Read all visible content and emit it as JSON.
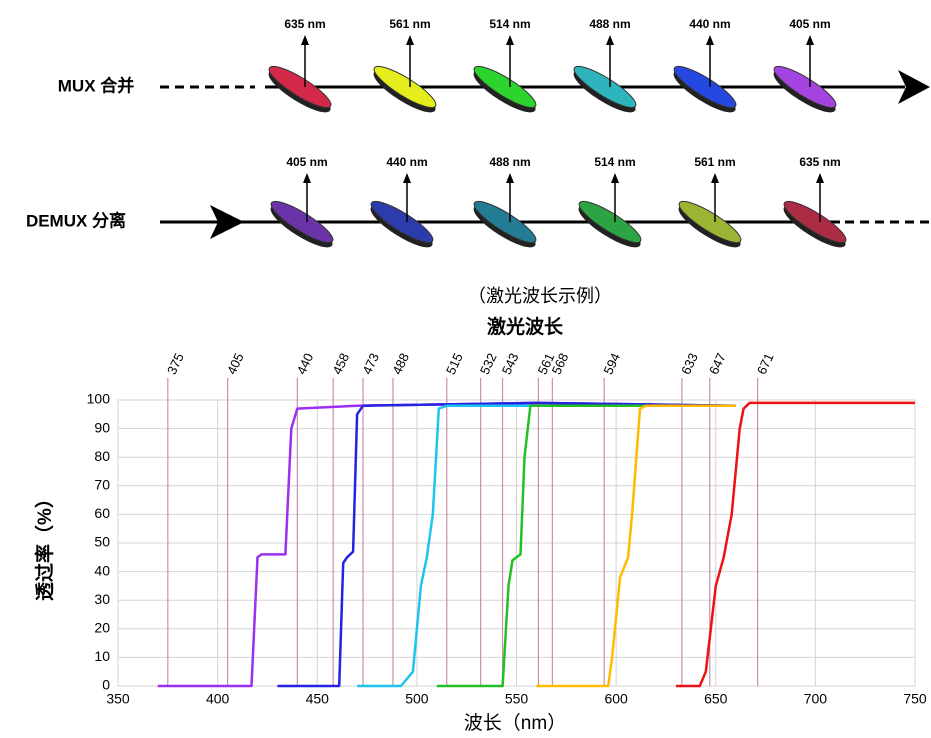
{
  "mux": {
    "label": "MUX 合并",
    "filters": [
      {
        "label": "635 nm",
        "color": "#d42848"
      },
      {
        "label": "561 nm",
        "color": "#e4ee1c"
      },
      {
        "label": "514 nm",
        "color": "#2ed42e"
      },
      {
        "label": "488 nm",
        "color": "#2eb4bc"
      },
      {
        "label": "440 nm",
        "color": "#2448e0"
      },
      {
        "label": "405 nm",
        "color": "#a444e0"
      }
    ]
  },
  "demux": {
    "label": "DEMUX 分离",
    "filters": [
      {
        "label": "405 nm",
        "color": "#6a34a8"
      },
      {
        "label": "440 nm",
        "color": "#2c3cac"
      },
      {
        "label": "488 nm",
        "color": "#247c94"
      },
      {
        "label": "514 nm",
        "color": "#2ca444"
      },
      {
        "label": "561 nm",
        "color": "#9cb434"
      },
      {
        "label": "635 nm",
        "color": "#ac2c44"
      }
    ]
  },
  "caption": "（激光波长示例）",
  "chart_data": {
    "type": "line",
    "title": "激光波长",
    "x_label": "波长（nm）",
    "y_label": "透过率（%）",
    "xlim": [
      350,
      750
    ],
    "ylim": [
      0,
      100
    ],
    "xticks": [
      350,
      400,
      450,
      500,
      550,
      600,
      650,
      700,
      750
    ],
    "yticks": [
      0,
      10,
      20,
      30,
      40,
      50,
      60,
      70,
      80,
      90,
      100
    ],
    "grid": true,
    "laser_lines": {
      "color": "#c890ac",
      "values": [
        375,
        405,
        440,
        458,
        473,
        488,
        515,
        532,
        543,
        561,
        568,
        594,
        633,
        647,
        671
      ]
    },
    "series": [
      {
        "color": "#9b30f0",
        "x": [
          370,
          417,
          420,
          422,
          434,
          437,
          440,
          470,
          560,
          660
        ],
        "values": [
          0,
          0,
          45,
          46,
          46,
          90,
          97,
          98,
          99,
          98
        ]
      },
      {
        "color": "#2424e0",
        "x": [
          430,
          461,
          463,
          465,
          468,
          470,
          473,
          560,
          660
        ],
        "values": [
          0,
          0,
          43,
          45,
          47,
          95,
          98,
          99,
          98
        ]
      },
      {
        "color": "#1ec4f0",
        "x": [
          470,
          492,
          498,
          502,
          505,
          508,
          511,
          515,
          660
        ],
        "values": [
          0,
          0,
          5,
          35,
          45,
          60,
          97,
          98,
          98
        ]
      },
      {
        "color": "#22c022",
        "x": [
          510,
          543,
          546,
          548,
          552,
          554,
          557,
          660
        ],
        "values": [
          0,
          0,
          35,
          44,
          46,
          80,
          98,
          98
        ]
      },
      {
        "color": "#ffbb00",
        "x": [
          560,
          596,
          598,
          602,
          606,
          608,
          612,
          615,
          660
        ],
        "values": [
          0,
          0,
          10,
          38,
          45,
          60,
          97,
          98,
          98
        ]
      },
      {
        "color": "#ee1111",
        "x": [
          630,
          642,
          645,
          650,
          654,
          658,
          662,
          664,
          667,
          750
        ],
        "values": [
          0,
          0,
          5,
          35,
          45,
          60,
          90,
          97,
          99,
          99
        ]
      }
    ]
  }
}
